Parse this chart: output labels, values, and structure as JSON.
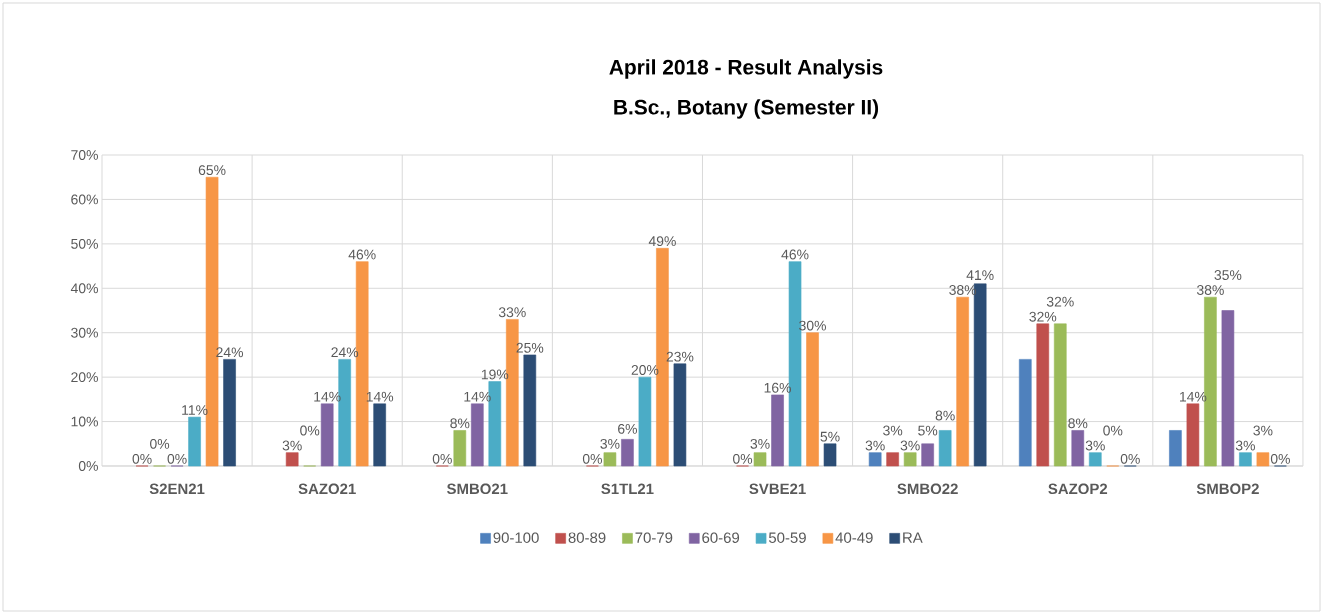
{
  "chart_data": {
    "type": "bar",
    "title": "April 2018 - Result Analysis",
    "subtitle": "B.Sc., Botany (Semester II)",
    "categories": [
      "S2EN21",
      "SAZO21",
      "SMBO21",
      "S1TL21",
      "SVBE21",
      "SMBO22",
      "SAZOP2",
      "SMBOP2"
    ],
    "series": [
      {
        "name": "90-100",
        "color": "#4f81bd",
        "values": [
          null,
          null,
          null,
          null,
          null,
          3,
          24,
          8
        ],
        "value_labels": [
          null,
          null,
          null,
          null,
          null,
          "3%",
          null,
          null
        ]
      },
      {
        "name": "80-89",
        "color": "#c0504d",
        "values": [
          0,
          3,
          0,
          0,
          0,
          3,
          32,
          14
        ],
        "value_labels": [
          "0%",
          "3%",
          "0%",
          "0%",
          "0%",
          "3%",
          "32%",
          "14%"
        ]
      },
      {
        "name": "70-79",
        "color": "#9bbb59",
        "values": [
          0,
          0,
          8,
          3,
          3,
          3,
          32,
          38
        ],
        "value_labels": [
          "0%",
          "0%",
          "8%",
          "3%",
          "3%",
          "3%",
          "32%",
          "38%"
        ]
      },
      {
        "name": "60-69",
        "color": "#8064a2",
        "values": [
          0,
          14,
          14,
          6,
          16,
          5,
          8,
          35
        ],
        "value_labels": [
          "0%",
          "14%",
          "14%",
          "6%",
          "16%",
          "5%",
          "8%",
          "35%"
        ]
      },
      {
        "name": "50-59",
        "color": "#4bacc6",
        "values": [
          11,
          24,
          19,
          20,
          46,
          8,
          3,
          3
        ],
        "value_labels": [
          "11%",
          "24%",
          "19%",
          "20%",
          "46%",
          "8%",
          "3%",
          "3%"
        ]
      },
      {
        "name": "40-49",
        "color": "#f79646",
        "values": [
          65,
          46,
          33,
          49,
          30,
          38,
          0,
          3
        ],
        "value_labels": [
          "65%",
          "46%",
          "33%",
          "49%",
          "30%",
          "38%",
          "0%",
          "3%"
        ]
      },
      {
        "name": "RA",
        "color": "#2c4d75",
        "values": [
          24,
          14,
          25,
          23,
          5,
          41,
          0,
          0
        ],
        "value_labels": [
          "24%",
          "14%",
          "25%",
          "23%",
          "5%",
          "41%",
          "0%",
          "0%"
        ]
      }
    ],
    "ylim": [
      0,
      70
    ],
    "yticks": [
      {
        "value": 0,
        "label": "0%"
      },
      {
        "value": 10,
        "label": "10%"
      },
      {
        "value": 20,
        "label": "20%"
      },
      {
        "value": 30,
        "label": "30%"
      },
      {
        "value": 40,
        "label": "40%"
      },
      {
        "value": 50,
        "label": "50%"
      },
      {
        "value": 60,
        "label": "60%"
      },
      {
        "value": 70,
        "label": "70%"
      }
    ],
    "grid": true,
    "legend": "bottom"
  }
}
